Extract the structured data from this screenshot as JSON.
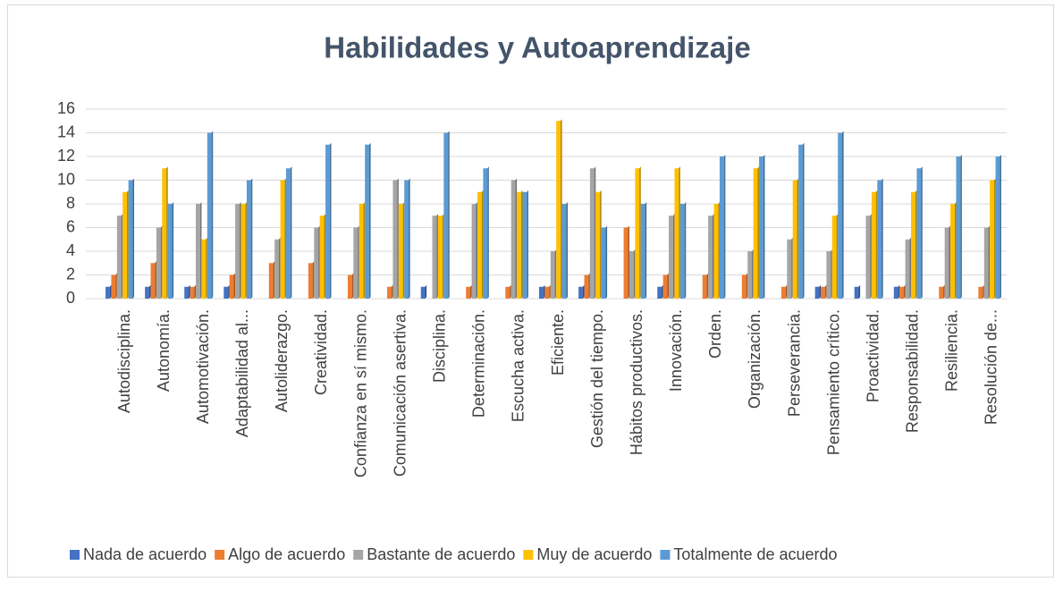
{
  "chart_data": {
    "type": "bar",
    "title": "Habilidades y Autoaprendizaje",
    "categories": [
      "Autodisciplina.",
      "Autonomía.",
      "Automotivación.",
      "Adaptabilidad al...",
      "Autoliderazgo.",
      "Creatividad.",
      "Confianza en sí mismo.",
      "Comunicación asertiva.",
      "Disciplina.",
      "Determinación.",
      "Escucha activa.",
      "Eficiente.",
      "Gestión del tiempo.",
      "Hábitos productivos.",
      "Innovación.",
      "Orden.",
      "Organización.",
      "Perseverancia.",
      "Pensamiento crítico.",
      "Proactividad.",
      "Responsabilidad.",
      "Resiliencia.",
      "Resolución de..."
    ],
    "series": [
      {
        "name": "Nada de acuerdo",
        "color": "#4472c4",
        "values": [
          1,
          1,
          1,
          1,
          0,
          0,
          0,
          0,
          1,
          0,
          0,
          1,
          1,
          0,
          1,
          0,
          0,
          0,
          1,
          1,
          1,
          0,
          0
        ]
      },
      {
        "name": "Algo de acuerdo",
        "color": "#ed7d31",
        "values": [
          2,
          3,
          1,
          2,
          3,
          3,
          2,
          1,
          0,
          1,
          1,
          1,
          2,
          6,
          2,
          2,
          2,
          1,
          1,
          0,
          1,
          1,
          1
        ]
      },
      {
        "name": "Bastante de acuerdo",
        "color": "#a5a5a5",
        "values": [
          7,
          6,
          8,
          8,
          5,
          6,
          6,
          10,
          7,
          8,
          10,
          4,
          11,
          4,
          7,
          7,
          4,
          5,
          4,
          7,
          5,
          6,
          6
        ]
      },
      {
        "name": "Muy de acuerdo",
        "color": "#ffc000",
        "values": [
          9,
          11,
          5,
          8,
          10,
          7,
          8,
          8,
          7,
          9,
          9,
          15,
          9,
          11,
          11,
          8,
          11,
          10,
          7,
          9,
          9,
          8,
          10
        ]
      },
      {
        "name": "Totalmente de acuerdo",
        "color": "#5b9bd5",
        "values": [
          10,
          8,
          14,
          10,
          11,
          13,
          13,
          10,
          14,
          11,
          9,
          8,
          6,
          8,
          8,
          12,
          12,
          13,
          14,
          10,
          11,
          12,
          12
        ]
      }
    ],
    "ylim": [
      0,
      16
    ],
    "yticks": [
      0,
      2,
      4,
      6,
      8,
      10,
      12,
      14,
      16
    ],
    "grid": true,
    "legend": "bottom"
  }
}
